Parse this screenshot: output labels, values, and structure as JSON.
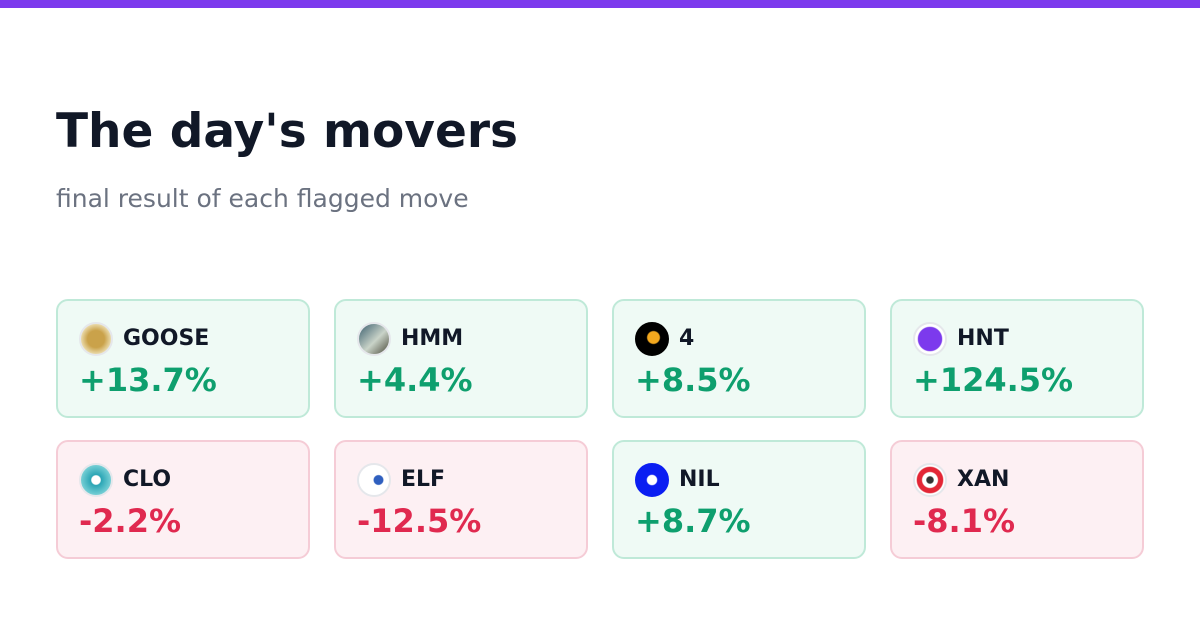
{
  "header": {
    "title": "The day's movers",
    "subtitle": "final result of each flagged move"
  },
  "cards": [
    {
      "symbol": "GOOSE",
      "change": "+13.7%"
    },
    {
      "symbol": "HMM",
      "change": "+4.4%"
    },
    {
      "symbol": "4",
      "change": "+8.5%"
    },
    {
      "symbol": "HNT",
      "change": "+124.5%"
    },
    {
      "symbol": "CLO",
      "change": "-2.2%"
    },
    {
      "symbol": "ELF",
      "change": "-12.5%"
    },
    {
      "symbol": "NIL",
      "change": "+8.7%"
    },
    {
      "symbol": "XAN",
      "change": "-8.1%"
    }
  ]
}
